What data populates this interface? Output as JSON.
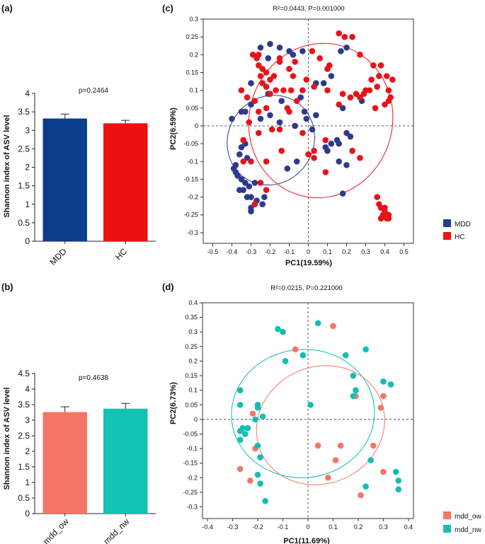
{
  "panels": {
    "a": {
      "label": "(a)",
      "pvalue": "p=0.2464",
      "ylabel": "Shannon index of ASV level",
      "ticks": [
        "0",
        "0.5",
        "1",
        "1.5",
        "2",
        "2.5",
        "3",
        "3.5",
        "4"
      ]
    },
    "b": {
      "label": "(b)",
      "pvalue": "p=0.4638",
      "ylabel": "Shannon index of ASV level",
      "ticks": [
        "0",
        "0.5",
        "1",
        "1.5",
        "2",
        "2.5",
        "3",
        "3.5",
        "4",
        "4.5"
      ]
    },
    "c": {
      "label": "(c)",
      "stat": "R²=0.0443, P=0.001000",
      "xlabel": "PC1(19.59%)",
      "ylabel": "PC2(6.59%)",
      "legend": [
        {
          "name": "MDD",
          "color": "#1f3f8f"
        },
        {
          "name": "HC",
          "color": "#e8141c"
        }
      ]
    },
    "d": {
      "label": "(d)",
      "stat": "R²=0.0215, P=0.221000",
      "xlabel": "PC1(11.69%)",
      "ylabel": "PC2(6.73%)",
      "legend": [
        {
          "name": "mdd_ow",
          "color": "#f4756a"
        },
        {
          "name": "mdd_nw",
          "color": "#10c0b4"
        }
      ]
    }
  },
  "chart_data": [
    {
      "id": "a",
      "type": "bar",
      "ylim": [
        0,
        4
      ],
      "categories": [
        "MDD",
        "HC"
      ],
      "values": [
        3.32,
        3.19
      ],
      "errors": [
        0.12,
        0.08
      ],
      "colors": [
        "#0a3d8a",
        "#ee1010"
      ],
      "xlabel": "",
      "ylabel": "Shannon index of ASV level",
      "title": "p=0.2464"
    },
    {
      "id": "b",
      "type": "bar",
      "ylim": [
        0,
        4.5
      ],
      "categories": [
        "mdd_ow",
        "mdd_nw"
      ],
      "values": [
        3.26,
        3.37
      ],
      "errors": [
        0.17,
        0.17
      ],
      "colors": [
        "#f57565",
        "#12c2b3"
      ],
      "xlabel": "",
      "ylabel": "Shannon index of ASV level",
      "title": "p=0.4638"
    },
    {
      "id": "c",
      "type": "scatter",
      "title": "R²=0.0443, P=0.001000",
      "xlabel": "PC1(19.59%)",
      "ylabel": "PC2(6.59%)",
      "xlim": [
        -0.55,
        0.55
      ],
      "ylim": [
        -0.33,
        0.3
      ],
      "xticks": [
        -0.5,
        -0.4,
        -0.3,
        -0.2,
        -0.1,
        0,
        0.1,
        0.2,
        0.3,
        0.4,
        0.5
      ],
      "yticks": [
        -0.3,
        -0.25,
        -0.2,
        -0.15,
        -0.1,
        -0.05,
        0,
        0.05,
        0.1,
        0.15,
        0.2,
        0.25,
        0.3
      ],
      "series": [
        {
          "name": "MDD",
          "color": "#2e3a8c",
          "ellipse": {
            "cx": -0.196,
            "cy": -0.04,
            "rx": 0.24,
            "ry": 0.12,
            "angle": 56
          },
          "points": [
            [
              -0.2,
              0.23
            ],
            [
              -0.25,
              0.22
            ],
            [
              -0.21,
              0.19
            ],
            [
              -0.15,
              0.22
            ],
            [
              -0.1,
              0.21
            ],
            [
              -0.08,
              0.2
            ],
            [
              -0.03,
              0.21
            ],
            [
              0.2,
              0.22
            ],
            [
              0.17,
              0.21
            ],
            [
              0.04,
              0.12
            ],
            [
              0.08,
              0.12
            ],
            [
              0.12,
              0.14
            ],
            [
              -0.3,
              0.12
            ],
            [
              -0.21,
              0.09
            ],
            [
              -0.14,
              0.07
            ],
            [
              -0.04,
              0.08
            ],
            [
              -0.02,
              0.04
            ],
            [
              -0.01,
              0.02
            ],
            [
              0.04,
              0.03
            ],
            [
              0.18,
              0.05
            ],
            [
              0.28,
              0.07
            ],
            [
              -0.3,
              0.06
            ],
            [
              -0.33,
              0.04
            ],
            [
              -0.35,
              0.04
            ],
            [
              -0.4,
              0.02
            ],
            [
              -0.2,
              0.03
            ],
            [
              -0.25,
              0.02
            ],
            [
              -0.15,
              0.01
            ],
            [
              -0.07,
              0.0
            ],
            [
              0.02,
              -0.01
            ],
            [
              0.16,
              -0.05
            ],
            [
              0.15,
              -0.04
            ],
            [
              0.22,
              -0.03
            ],
            [
              0.2,
              -0.02
            ],
            [
              0.12,
              -0.05
            ],
            [
              0.09,
              -0.06
            ],
            [
              -0.34,
              -0.04
            ],
            [
              -0.33,
              -0.05
            ],
            [
              -0.35,
              -0.06
            ],
            [
              -0.36,
              -0.08
            ],
            [
              -0.06,
              -0.1
            ],
            [
              -0.32,
              -0.09
            ],
            [
              -0.38,
              -0.11
            ],
            [
              -0.39,
              -0.12
            ],
            [
              -0.38,
              -0.13
            ],
            [
              -0.37,
              -0.14
            ],
            [
              -0.35,
              -0.15
            ],
            [
              -0.28,
              -0.16
            ],
            [
              -0.31,
              -0.17
            ],
            [
              -0.33,
              -0.16
            ],
            [
              -0.34,
              -0.18
            ],
            [
              -0.36,
              -0.18
            ],
            [
              -0.3,
              -0.2
            ],
            [
              -0.32,
              -0.2
            ],
            [
              -0.27,
              -0.21
            ],
            [
              -0.23,
              -0.2
            ],
            [
              -0.24,
              -0.22
            ],
            [
              -0.3,
              -0.23
            ],
            [
              -0.3,
              -0.24
            ],
            [
              0.18,
              -0.19
            ],
            [
              0.2,
              -0.11
            ],
            [
              0.16,
              -0.1
            ],
            [
              0.1,
              -0.07
            ],
            [
              -0.11,
              -0.12
            ]
          ]
        },
        {
          "name": "HC",
          "color": "#e8131a",
          "ellipse": {
            "cx": 0.065,
            "cy": 0.015,
            "rx": 0.375,
            "ry": 0.218,
            "angle": -15
          },
          "points": [
            [
              0.16,
              0.26
            ],
            [
              0.19,
              0.25
            ],
            [
              0.23,
              0.25
            ],
            [
              0.27,
              0.2
            ],
            [
              0.34,
              0.17
            ],
            [
              0.38,
              0.17
            ],
            [
              0.41,
              0.14
            ],
            [
              0.44,
              0.13
            ],
            [
              0.37,
              0.14
            ],
            [
              0.33,
              0.13
            ],
            [
              0.3,
              0.1
            ],
            [
              0.29,
              0.09
            ],
            [
              0.27,
              0.08
            ],
            [
              0.22,
              0.08
            ],
            [
              0.25,
              0.09
            ],
            [
              0.32,
              0.1
            ],
            [
              0.36,
              0.11
            ],
            [
              0.42,
              0.1
            ],
            [
              0.43,
              0.08
            ],
            [
              0.42,
              0.07
            ],
            [
              0.4,
              0.06
            ],
            [
              0.35,
              0.05
            ],
            [
              -0.15,
              0.19
            ],
            [
              -0.15,
              0.18
            ],
            [
              -0.07,
              0.18
            ],
            [
              -0.1,
              0.16
            ],
            [
              -0.08,
              0.14
            ],
            [
              -0.18,
              0.14
            ],
            [
              -0.25,
              0.14
            ],
            [
              -0.24,
              0.12
            ],
            [
              -0.22,
              0.11
            ],
            [
              -0.2,
              0.09
            ],
            [
              -0.17,
              0.1
            ],
            [
              -0.13,
              0.1
            ],
            [
              -0.09,
              0.1
            ],
            [
              -0.03,
              0.1
            ],
            [
              -0.06,
              0.07
            ],
            [
              -0.11,
              0.05
            ],
            [
              -0.1,
              0.04
            ],
            [
              -0.2,
              0.13
            ],
            [
              -0.22,
              0.15
            ],
            [
              -0.24,
              0.16
            ],
            [
              -0.26,
              0.17
            ],
            [
              -0.27,
              0.19
            ],
            [
              -0.29,
              0.2
            ],
            [
              -0.26,
              0.2
            ],
            [
              0.02,
              0.21
            ],
            [
              0.06,
              0.19
            ],
            [
              0.11,
              0.17
            ],
            [
              0.1,
              0.16
            ],
            [
              -0.01,
              0.13
            ],
            [
              0.03,
              0.11
            ],
            [
              0.1,
              0.1
            ],
            [
              0.18,
              0.09
            ],
            [
              0.16,
              0.06
            ],
            [
              -0.35,
              0.1
            ],
            [
              -0.32,
              0.08
            ],
            [
              -0.28,
              0.07
            ],
            [
              -0.26,
              0.04
            ],
            [
              -0.22,
              0.05
            ],
            [
              -0.31,
              0.01
            ],
            [
              -0.34,
              -0.04
            ],
            [
              -0.26,
              -0.02
            ],
            [
              -0.19,
              -0.01
            ],
            [
              -0.15,
              -0.01
            ],
            [
              -0.03,
              -0.02
            ],
            [
              0.09,
              -0.04
            ],
            [
              0.03,
              -0.07
            ],
            [
              0.0,
              -0.08
            ],
            [
              -0.14,
              -0.07
            ],
            [
              -0.22,
              -0.1
            ],
            [
              0.23,
              -0.07
            ],
            [
              0.27,
              -0.09
            ],
            [
              0.09,
              -0.13
            ],
            [
              0.03,
              -0.09
            ],
            [
              -0.3,
              -0.1
            ],
            [
              -0.34,
              -0.1
            ],
            [
              -0.25,
              -0.16
            ],
            [
              -0.22,
              -0.18
            ],
            [
              -0.28,
              -0.22
            ],
            [
              0.37,
              -0.22
            ],
            [
              0.36,
              -0.2
            ],
            [
              0.38,
              -0.23
            ],
            [
              0.4,
              -0.23
            ],
            [
              0.41,
              -0.25
            ],
            [
              0.42,
              -0.25
            ],
            [
              0.42,
              -0.26
            ],
            [
              0.4,
              -0.24
            ],
            [
              0.39,
              -0.25
            ],
            [
              0.38,
              -0.26
            ],
            [
              0.41,
              -0.26
            ]
          ]
        }
      ]
    },
    {
      "id": "d",
      "type": "scatter",
      "title": "R²=0.0215, P=0.221000",
      "xlabel": "PC1(11.69%)",
      "ylabel": "PC2(6.73%)",
      "xlim": [
        -0.42,
        0.42
      ],
      "ylim": [
        -0.34,
        0.4
      ],
      "xticks": [
        -0.4,
        -0.3,
        -0.2,
        -0.1,
        0,
        0.1,
        0.2,
        0.3,
        0.4
      ],
      "yticks": [
        -0.3,
        -0.25,
        -0.2,
        -0.15,
        -0.1,
        -0.05,
        0,
        0.05,
        0.1,
        0.15,
        0.2,
        0.25,
        0.3,
        0.35,
        0.4
      ],
      "series": [
        {
          "name": "mdd_ow",
          "color": "#f4756a",
          "ellipse": {
            "cx": 0.05,
            "cy": -0.02,
            "rx": 0.26,
            "ry": 0.2,
            "angle": 25
          },
          "points": [
            [
              -0.05,
              0.24
            ],
            [
              0.1,
              0.32
            ],
            [
              0.19,
              0.08
            ],
            [
              0.3,
              0.08
            ],
            [
              0.29,
              0.04
            ],
            [
              -0.22,
              0.02
            ],
            [
              -0.24,
              -0.03
            ],
            [
              -0.21,
              -0.1
            ],
            [
              0.04,
              -0.09
            ],
            [
              0.13,
              -0.09
            ],
            [
              0.26,
              -0.09
            ],
            [
              0.11,
              -0.14
            ],
            [
              -0.27,
              -0.17
            ],
            [
              -0.23,
              -0.21
            ],
            [
              0.08,
              -0.2
            ],
            [
              0.3,
              -0.18
            ],
            [
              0.21,
              -0.26
            ]
          ]
        },
        {
          "name": "mdd_nw",
          "color": "#10bfb3",
          "ellipse": {
            "cx": -0.02,
            "cy": 0.02,
            "rx": 0.285,
            "ry": 0.22,
            "angle": 5
          },
          "points": [
            [
              -0.12,
              0.31
            ],
            [
              -0.1,
              0.3
            ],
            [
              0.04,
              0.33
            ],
            [
              -0.02,
              0.22
            ],
            [
              -0.09,
              0.2
            ],
            [
              0.18,
              0.15
            ],
            [
              0.23,
              0.24
            ],
            [
              0.15,
              0.22
            ],
            [
              0.3,
              0.13
            ],
            [
              0.33,
              0.12
            ],
            [
              0.19,
              0.1
            ],
            [
              0.18,
              0.08
            ],
            [
              -0.27,
              0.1
            ],
            [
              -0.27,
              0.05
            ],
            [
              -0.2,
              0.05
            ],
            [
              -0.2,
              0.04
            ],
            [
              -0.21,
              0.0
            ],
            [
              -0.18,
              0.01
            ],
            [
              -0.26,
              -0.03
            ],
            [
              -0.24,
              -0.03
            ],
            [
              -0.27,
              -0.04
            ],
            [
              -0.25,
              -0.05
            ],
            [
              -0.27,
              -0.07
            ],
            [
              -0.2,
              -0.09
            ],
            [
              -0.19,
              -0.13
            ],
            [
              -0.2,
              -0.19
            ],
            [
              -0.19,
              -0.22
            ],
            [
              0.01,
              0.05
            ],
            [
              0.25,
              -0.14
            ],
            [
              0.23,
              -0.23
            ],
            [
              0.35,
              -0.18
            ],
            [
              0.36,
              -0.21
            ],
            [
              0.36,
              -0.24
            ],
            [
              -0.17,
              -0.28
            ]
          ]
        }
      ]
    }
  ]
}
